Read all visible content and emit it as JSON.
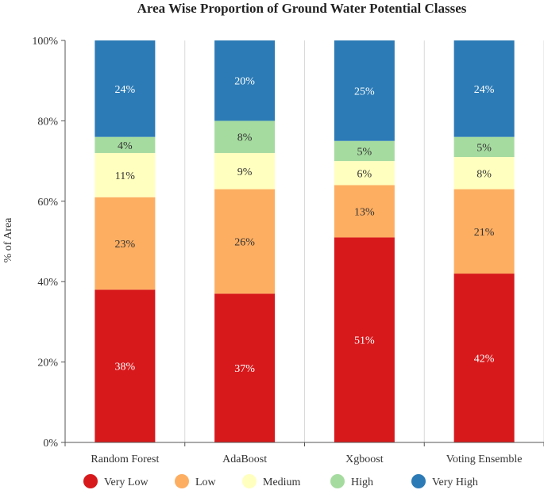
{
  "chart_data": {
    "type": "bar",
    "stacked": true,
    "title": "Area Wise Proportion of Ground Water Potential Classes",
    "xlabel": "",
    "ylabel": "% of Area",
    "ylim": [
      0,
      100
    ],
    "yticks": [
      "0%",
      "20%",
      "40%",
      "60%",
      "80%",
      "100%"
    ],
    "categories": [
      "Random Forest",
      "AdaBoost",
      "Xgboost",
      "Voting Ensemble"
    ],
    "series": [
      {
        "name": "Very Low",
        "color": "#d7191c",
        "label_color": "#ffffff",
        "values": [
          38,
          37,
          51,
          42
        ],
        "labels": [
          "38%",
          "37%",
          "51%",
          "42%"
        ]
      },
      {
        "name": "Low",
        "color": "#fdae61",
        "label_color": "#333333",
        "values": [
          23,
          26,
          13,
          21
        ],
        "labels": [
          "23%",
          "26%",
          "13%",
          "21%"
        ]
      },
      {
        "name": "Medium",
        "color": "#ffffbf",
        "label_color": "#333333",
        "values": [
          11,
          9,
          6,
          8
        ],
        "labels": [
          "11%",
          "9%",
          "6%",
          "8%"
        ]
      },
      {
        "name": "High",
        "color": "#a6dba0",
        "label_color": "#333333",
        "values": [
          4,
          8,
          5,
          5
        ],
        "labels": [
          "4%",
          "8%",
          "5%",
          "5%"
        ]
      },
      {
        "name": "Very High",
        "color": "#2c7bb6",
        "label_color": "#ffffff",
        "values": [
          24,
          20,
          25,
          24
        ],
        "labels": [
          "24%",
          "20%",
          "25%",
          "24%"
        ]
      }
    ],
    "legend_position": "bottom",
    "grid": "vertical"
  }
}
